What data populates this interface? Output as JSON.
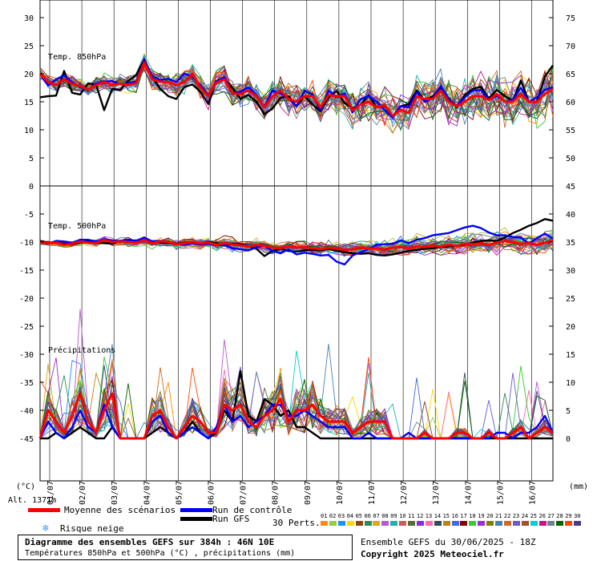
{
  "chart_data": {
    "type": "line",
    "title": "Diagramme des ensembles GEFS sur 384h : 46N 10E",
    "subtitle": "Températures 850hPa et 500hPa (°C) , précipitations (mm)",
    "left_unit": "(°C)",
    "right_unit": "(mm)",
    "altitude_label": "Alt. 1371m",
    "left_ticks": [
      "30",
      "25",
      "20",
      "15",
      "10",
      "5",
      "0",
      "-5",
      "-10",
      "-15",
      "-20",
      "-25",
      "-30",
      "-35",
      "-40",
      "-45"
    ],
    "right_ticks_top": [
      "75",
      "70",
      "65",
      "60",
      "55",
      "50"
    ],
    "right_ticks_bottom": [
      "45",
      "40",
      "35",
      "30",
      "25",
      "20",
      "15",
      "10",
      "5",
      "0"
    ],
    "x_dates": [
      "01/07",
      "02/07",
      "03/07",
      "04/07",
      "05/07",
      "06/07",
      "07/07",
      "08/07",
      "09/07",
      "10/07",
      "11/07",
      "12/07",
      "13/07",
      "14/07",
      "15/07",
      "16/07"
    ],
    "panels": [
      {
        "label": "Temp. 850hPa",
        "unit": "°C"
      },
      {
        "label": "Temp. 500hPa",
        "unit": "°C"
      },
      {
        "label": "Précipitations",
        "unit": "mm"
      }
    ],
    "x_steps": 65,
    "series": [
      {
        "name": "Moyenne des scénarios",
        "color": "#ff0000",
        "t850": [
          20,
          18.5,
          18,
          19,
          18.2,
          17.8,
          17.1,
          18,
          18.5,
          18,
          18.2,
          18,
          18.3,
          22,
          19,
          18.6,
          18.5,
          18,
          18.5,
          20,
          17.5,
          16,
          18.4,
          19,
          16.5,
          16.4,
          17,
          16,
          14,
          16,
          17,
          15.5,
          15,
          16,
          16,
          14,
          16.2,
          16,
          16,
          13.5,
          14.5,
          15,
          14,
          14.4,
          12.5,
          13.6,
          13,
          16,
          15.5,
          15.5,
          17,
          15,
          14.2,
          15,
          16,
          16,
          15.3,
          16.4,
          15,
          15,
          16.4,
          15,
          15,
          16.4,
          17.3
        ],
        "t500": [
          -10,
          -10.2,
          -10.1,
          -10.5,
          -10.3,
          -9.9,
          -10.1,
          -10.2,
          -9.6,
          -10,
          -9.9,
          -10,
          -10.1,
          -9.7,
          -10.2,
          -9.9,
          -10,
          -10.4,
          -10.2,
          -10,
          -10.3,
          -10.1,
          -10.5,
          -10.2,
          -10.4,
          -10.6,
          -10.8,
          -10.5,
          -10.7,
          -11,
          -11.1,
          -10.8,
          -11,
          -10.9,
          -11.1,
          -11.3,
          -11,
          -11.2,
          -11.4,
          -11.3,
          -11,
          -11.2,
          -11.1,
          -11.3,
          -11,
          -10.9,
          -11.1,
          -10.8,
          -10.9,
          -10.6,
          -10.8,
          -10.5,
          -10.7,
          -10.3,
          -10.4,
          -10.2,
          -10.5,
          -10.1,
          -9.8,
          -10,
          -10.3,
          -10.2,
          -10.5,
          -10.1,
          -9.8
        ],
        "precip": [
          0,
          5,
          3,
          1,
          4,
          8,
          3,
          1,
          5,
          8,
          0,
          0,
          0,
          0,
          4,
          5,
          2,
          0,
          2,
          4,
          3,
          1,
          1,
          6,
          5,
          6,
          3,
          2,
          4,
          5,
          7,
          3,
          5,
          5,
          6,
          4,
          3,
          3,
          3,
          1,
          2,
          3,
          3,
          3,
          0,
          0,
          0,
          0,
          1,
          0,
          0,
          0,
          1,
          1,
          0,
          0,
          1,
          0,
          0,
          1,
          2,
          0,
          1,
          2,
          1
        ]
      },
      {
        "name": "Run de contrôle",
        "color": "#0000ff",
        "t850": [
          20,
          17.9,
          19,
          19.7,
          18.5,
          17.6,
          17,
          18.3,
          18.6,
          18.7,
          18.1,
          18.3,
          18.6,
          22.5,
          19.5,
          18.9,
          19.1,
          18.5,
          20,
          19.5,
          18,
          16.2,
          18.6,
          19.4,
          16.5,
          16.8,
          17.6,
          16.2,
          14.1,
          17,
          16.5,
          15.6,
          14.2,
          17,
          16.3,
          13.4,
          17,
          15.8,
          16.5,
          13.1,
          15.5,
          16,
          15,
          13.5,
          12.2,
          14.2,
          14,
          16.7,
          15,
          15.6,
          17.8,
          15.4,
          14.3,
          15.8,
          17,
          17.1,
          15.3,
          16.1,
          15,
          15.4,
          17.5,
          15,
          15.8,
          17.1,
          17.6
        ],
        "t500": [
          -10,
          -10.3,
          -9.8,
          -9.9,
          -10.1,
          -9.6,
          -9.6,
          -9.9,
          -9.5,
          -9.7,
          -9.8,
          -9.6,
          -9.8,
          -9.2,
          -9.9,
          -9.8,
          -10,
          -10.3,
          -10.4,
          -10.2,
          -10.5,
          -10.3,
          -10.6,
          -10.5,
          -11.1,
          -11.3,
          -11.5,
          -10.9,
          -10.7,
          -11.6,
          -12,
          -11.3,
          -12.2,
          -11.9,
          -12.1,
          -12.4,
          -12.3,
          -13.5,
          -14,
          -12.4,
          -11.8,
          -11.3,
          -10.5,
          -10.4,
          -10.3,
          -9.7,
          -10.2,
          -9.6,
          -9.3,
          -8.8,
          -8.6,
          -8.4,
          -7.9,
          -7.4,
          -7.1,
          -7.5,
          -8.3,
          -8.8,
          -8.8,
          -9.1,
          -9.2,
          -10.3,
          -9.3,
          -8.5,
          -9.4
        ],
        "precip": [
          0,
          3,
          1,
          0,
          2,
          5,
          2,
          1,
          6,
          2,
          0,
          0,
          0,
          0,
          3,
          4,
          1,
          0,
          1,
          2,
          1,
          0,
          2,
          6,
          3,
          4,
          2,
          3,
          4,
          6,
          6,
          4,
          4,
          5,
          4,
          3,
          2,
          2,
          2,
          0,
          0,
          1,
          0,
          0,
          0,
          0,
          1,
          0,
          0,
          0,
          0,
          0,
          0,
          0,
          0,
          0,
          0,
          1,
          1,
          0,
          1,
          1,
          2,
          4,
          1
        ]
      },
      {
        "name": "Run GFS",
        "color": "#000000",
        "t850": [
          15.8,
          16,
          16.1,
          20.5,
          16.6,
          16.3,
          18.3,
          18,
          13.5,
          17.3,
          17.1,
          18.7,
          19.8,
          22.6,
          19.4,
          17.3,
          16,
          15.5,
          17.6,
          18.1,
          16.8,
          14.6,
          18.7,
          19,
          17.5,
          15.5,
          16.2,
          15,
          12.8,
          13.8,
          15.7,
          16,
          14.2,
          16,
          14.5,
          13.3,
          15.8,
          16.9,
          14.8,
          13.8,
          14.5,
          16.2,
          14,
          14.2,
          12.4,
          14.2,
          14.6,
          17,
          15.2,
          16,
          17.5,
          15.6,
          14,
          16.2,
          17.3,
          17.7,
          15.6,
          17.1,
          16,
          15.2,
          18.8,
          15,
          15,
          19.5,
          21.5
        ],
        "t500": [
          -9.8,
          -10.1,
          -10.1,
          -10.3,
          -10.4,
          -10.1,
          -9.9,
          -10.1,
          -10.2,
          -10.3,
          -9.8,
          -9.6,
          -9.8,
          -9.2,
          -9.9,
          -10.1,
          -10.2,
          -10.3,
          -10.1,
          -10.1,
          -10.3,
          -10,
          -10.2,
          -10.6,
          -10.3,
          -10.4,
          -10.7,
          -11.2,
          -12.5,
          -11.6,
          -11.2,
          -11.6,
          -11.7,
          -11.5,
          -11.4,
          -11.5,
          -11.2,
          -11.6,
          -11.8,
          -12,
          -12.1,
          -12,
          -12.3,
          -12.4,
          -12.2,
          -11.9,
          -11.6,
          -11.4,
          -11.2,
          -11.1,
          -10.9,
          -10.8,
          -10.7,
          -10.5,
          -10.1,
          -9.8,
          -9.7,
          -9.8,
          -9.2,
          -8.4,
          -7.8,
          -7.1,
          -6.6,
          -5.9,
          -6.2
        ],
        "precip": [
          0,
          0,
          1,
          0,
          1,
          2,
          1,
          0,
          0,
          2,
          0,
          0,
          0,
          0,
          1,
          2,
          1,
          0,
          1,
          3,
          1,
          0,
          1,
          5,
          3,
          12,
          4,
          3,
          7,
          6,
          4,
          5,
          2,
          2,
          1,
          0,
          0,
          0,
          0,
          0,
          0,
          0,
          0,
          0,
          0,
          0,
          0,
          0,
          0,
          0,
          0,
          0,
          0,
          0,
          0,
          0,
          0,
          0,
          0,
          0,
          0,
          0,
          0,
          0,
          0
        ]
      }
    ]
  },
  "legend": {
    "mean_label": "Moyenne des scénarios",
    "control_label": "Run de contrôle",
    "gfs_label": "Run GFS",
    "snow_label": "Risque neige",
    "perts_label": "30 Perts.",
    "snow_icon": "snowflake-icon",
    "pert_numbers": [
      "01",
      "02",
      "03",
      "04",
      "05",
      "06",
      "07",
      "08",
      "09",
      "10",
      "11",
      "12",
      "13",
      "14",
      "15",
      "16",
      "17",
      "18",
      "19",
      "20",
      "21",
      "22",
      "23",
      "24",
      "25",
      "26",
      "27",
      "28",
      "29",
      "30"
    ],
    "pert_colors": [
      "#ff8c00",
      "#9acd32",
      "#1e90ff",
      "#ffd700",
      "#8b4513",
      "#2e8b57",
      "#daa520",
      "#ba55d3",
      "#20b2aa",
      "#cd5c5c",
      "#556b2f",
      "#8a2be2",
      "#ff69b4",
      "#2f4f4f",
      "#b8860b",
      "#4169e1",
      "#800000",
      "#32cd32",
      "#9932cc",
      "#808000",
      "#4682b4",
      "#d2691e",
      "#6a5acd",
      "#a0522d",
      "#00ced1",
      "#c71585",
      "#708090",
      "#006400",
      "#ff4500",
      "#483d8b"
    ]
  },
  "footer": {
    "title": "Diagramme des ensembles GEFS sur 384h : 46N 10E",
    "subtitle": "Températures 850hPa et 500hPa (°C) , précipitations (mm)",
    "run_label": "Ensemble GEFS du 30/06/2025 - 18Z",
    "copyright": "Copyright 2025 Meteociel.fr"
  }
}
